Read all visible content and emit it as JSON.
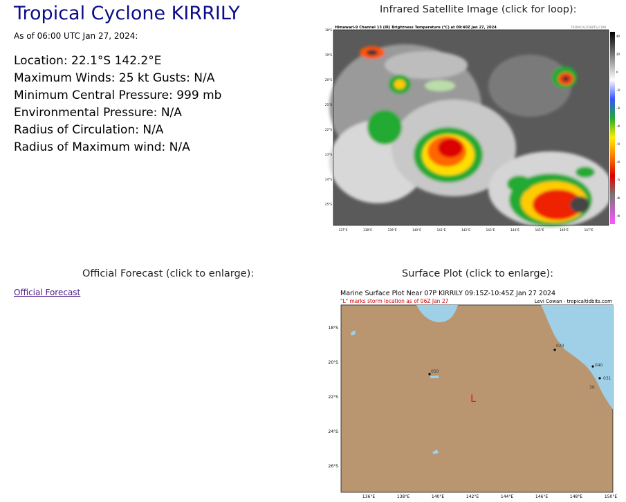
{
  "storm": {
    "title": "Tropical Cyclone KIRRILY",
    "as_of": "As of 06:00 UTC Jan 27, 2024:",
    "stats": [
      "Location: 22.1°S 142.2°E",
      "Maximum Winds: 25 kt  Gusts: N/A",
      "Minimum Central Pressure: 999 mb",
      "Environmental Pressure: N/A",
      "Radius of Circulation: N/A",
      "Radius of Maximum wind: N/A"
    ]
  },
  "satellite": {
    "heading": "Infrared Satellite Image (click for loop):",
    "image_title": "Himawari-9 Channel 13 (IR) Brightness Temperature (°C) at 09:40Z Jan 27, 2024",
    "credit": "TROPICALTIDBITS.COM",
    "lat_labels": [
      "18°S",
      "19°S",
      "20°S",
      "21°S",
      "22°S",
      "23°S",
      "24°S",
      "25°S"
    ],
    "lon_labels": [
      "137°E",
      "138°E",
      "139°E",
      "140°E",
      "141°E",
      "142°E",
      "143°E",
      "144°E",
      "145°E",
      "146°E",
      "147°E"
    ],
    "colorbar_labels": [
      "40",
      "20",
      "0",
      "-20",
      "-30",
      "-40",
      "-50",
      "-60",
      "-70",
      "-80",
      "-90"
    ]
  },
  "forecast": {
    "heading": "Official Forecast (click to enlarge):",
    "link_text": "Official Forecast"
  },
  "surface": {
    "heading": "Surface Plot (click to enlarge):",
    "title": "Marine Surface Plot Near 07P KIRRILY 09:15Z-10:45Z Jan 27 2024",
    "subtitle": "\"L\" marks storm location as of 06Z Jan 27",
    "credit": "Levi Cowan - tropicaltidbits.com",
    "storm_marker": "L",
    "lat_labels": [
      "18°S",
      "20°S",
      "22°S",
      "24°S",
      "26°S"
    ],
    "lon_labels": [
      "136°E",
      "138°E",
      "140°E",
      "142°E",
      "144°E",
      "146°E",
      "148°E",
      "150°E"
    ],
    "station_labels": [
      "050",
      "020",
      "040",
      "031",
      "30"
    ],
    "colors": {
      "land": "#b99670",
      "water": "#9fd0e8",
      "marker": "#ff0000"
    }
  }
}
